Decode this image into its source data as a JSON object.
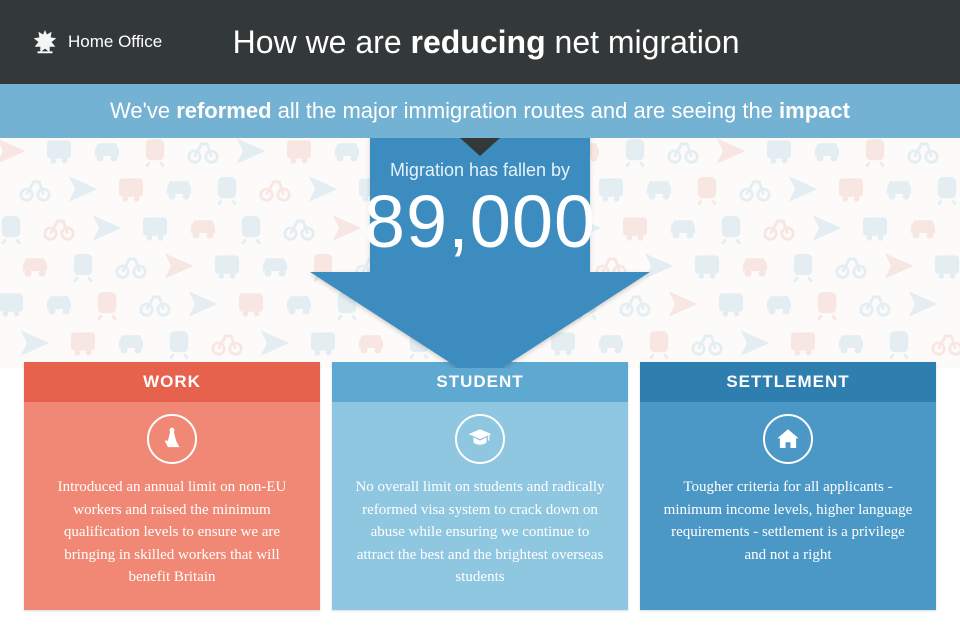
{
  "header": {
    "org": "Home Office",
    "title_pre": "How we are ",
    "title_strong": "reducing",
    "title_post": " net migration"
  },
  "sub": {
    "pre": "We've ",
    "s1": "reformed",
    "mid": " all the major immigration routes and are seeing the ",
    "s2": "impact"
  },
  "arrow": {
    "fallen": "Migration has fallen by",
    "number": "89,000",
    "light": "#74b2d4",
    "dark": "#3d8cbf"
  },
  "cards": [
    {
      "title": "WORK",
      "head_bg": "#e6624d",
      "body_bg": "#f08875",
      "icon": "work",
      "text": "Introduced an annual limit on non-EU workers and raised the minimum qualification levels to ensure we are bringing in skilled workers that will benefit Britain"
    },
    {
      "title": "STUDENT",
      "head_bg": "#5ea9d1",
      "body_bg": "#8fc6e0",
      "icon": "student",
      "text": "No overall limit on students and radically reformed visa system to crack down on abuse while ensuring we continue to attract the best and the brightest overseas students"
    },
    {
      "title": "SETTLEMENT",
      "head_bg": "#2f7eb0",
      "body_bg": "#4b98c6",
      "icon": "home",
      "text": "Tougher criteria for all applicants - minimum income levels, higher language requirements - settlement is a privilege and not a right"
    }
  ],
  "pattern": {
    "blue": "#a9cfe2",
    "red": "#f0b3aa"
  }
}
